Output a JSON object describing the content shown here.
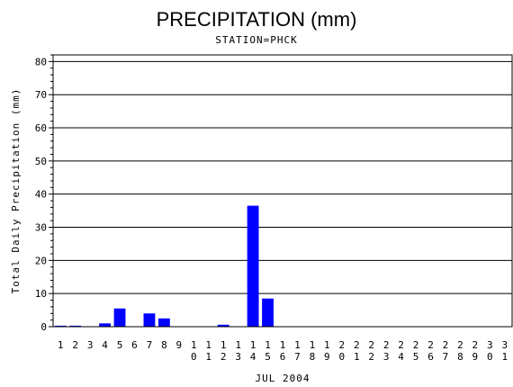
{
  "chart_data": {
    "type": "bar",
    "title": "PRECIPITATION (mm)",
    "subtitle": "STATION=PHCK",
    "xlabel": "JUL 2004",
    "ylabel": "Total Daily Precipitation (mm)",
    "ylim": [
      0,
      82
    ],
    "yticks": [
      0,
      10,
      20,
      30,
      40,
      50,
      60,
      70,
      80
    ],
    "grid": true,
    "bar_color": "#0000ff",
    "categories": [
      "1",
      "2",
      "3",
      "4",
      "5",
      "6",
      "7",
      "8",
      "9",
      "10",
      "11",
      "12",
      "13",
      "14",
      "15",
      "16",
      "17",
      "18",
      "19",
      "20",
      "21",
      "22",
      "23",
      "24",
      "25",
      "26",
      "27",
      "28",
      "29",
      "30",
      "31"
    ],
    "values": [
      0.3,
      0.3,
      0,
      1.0,
      5.5,
      0,
      4.0,
      2.5,
      0,
      0,
      0,
      0.6,
      0,
      36.5,
      8.5,
      0,
      0,
      0,
      0,
      0,
      0,
      0,
      0,
      0,
      0,
      0,
      0,
      0,
      0,
      0,
      0
    ]
  }
}
